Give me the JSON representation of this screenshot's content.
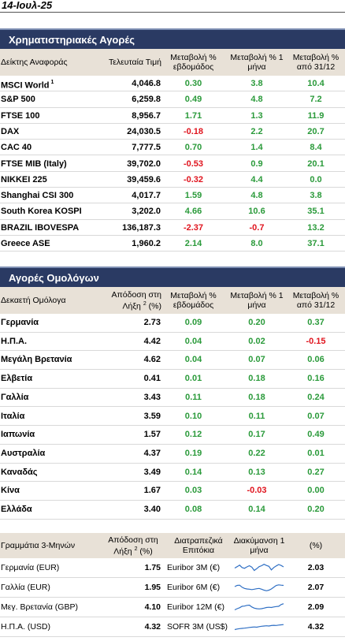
{
  "date": "14-Ιουλ-25",
  "equity": {
    "title": "Χρηματιστηριακές Αγορές",
    "headers": [
      "Δείκτης Αναφοράς",
      "Τελευταία Τιμή",
      "Μεταβολή % εβδομάδος",
      "Μεταβολή % 1 μήνα",
      "Μεταβολή % από 31/12"
    ],
    "rows": [
      {
        "name": "MSCI World",
        "sup": "1",
        "value": "4,046.8",
        "w": "0.30",
        "m": "3.8",
        "y": "10.4"
      },
      {
        "name": "S&P 500",
        "value": "6,259.8",
        "w": "0.49",
        "m": "4.8",
        "y": "7.2"
      },
      {
        "name": "FTSE 100",
        "value": "8,956.7",
        "w": "1.71",
        "m": "1.3",
        "y": "11.9"
      },
      {
        "name": "DAX",
        "value": "24,030.5",
        "w": "-0.18",
        "m": "2.2",
        "y": "20.7"
      },
      {
        "name": "CAC 40",
        "value": "7,777.5",
        "w": "0.70",
        "m": "1.4",
        "y": "8.4"
      },
      {
        "name": "FTSE MIB (Italy)",
        "value": "39,702.0",
        "w": "-0.53",
        "m": "0.9",
        "y": "20.1"
      },
      {
        "name": "NIKKEI 225",
        "value": "39,459.6",
        "w": "-0.32",
        "m": "4.4",
        "y": "0.0"
      },
      {
        "name": "Shanghai CSI 300",
        "value": "4,017.7",
        "w": "1.59",
        "m": "4.8",
        "y": "3.8"
      },
      {
        "name": "South Korea KOSPI",
        "value": "3,202.0",
        "w": "4.66",
        "m": "10.6",
        "y": "35.1"
      },
      {
        "name": "BRAZIL IBOVESPA",
        "value": "136,187.3",
        "w": "-2.37",
        "m": "-0.7",
        "y": "13.2"
      },
      {
        "name": "Greece ASE",
        "value": "1,960.2",
        "w": "2.14",
        "m": "8.0",
        "y": "37.1"
      }
    ]
  },
  "bonds": {
    "title": "Αγορές Ομολόγων",
    "headers": [
      "Δεκαετή Ομόλογα",
      "Απόδοση στη Λήξη",
      "2",
      "(%)",
      "Μεταβολή % εβδομάδος",
      "Μεταβολή % 1 μήνα",
      "Μεταβολή % από 31/12"
    ],
    "rows": [
      {
        "name": "Γερμανία",
        "value": "2.73",
        "w": "0.09",
        "m": "0.20",
        "y": "0.37"
      },
      {
        "name": "Η.Π.Α.",
        "value": "4.42",
        "w": "0.04",
        "m": "0.02",
        "y": "-0.15"
      },
      {
        "name": "Μεγάλη Βρετανία",
        "value": "4.62",
        "w": "0.04",
        "m": "0.07",
        "y": "0.06"
      },
      {
        "name": "Ελβετία",
        "value": "0.41",
        "w": "0.01",
        "m": "0.18",
        "y": "0.16"
      },
      {
        "name": "Γαλλία",
        "value": "3.43",
        "w": "0.11",
        "m": "0.18",
        "y": "0.24"
      },
      {
        "name": "Ιταλία",
        "value": "3.59",
        "w": "0.10",
        "m": "0.11",
        "y": "0.07"
      },
      {
        "name": "Ιαπωνία",
        "value": "1.57",
        "w": "0.12",
        "m": "0.17",
        "y": "0.49"
      },
      {
        "name": "Αυστραλία",
        "value": "4.37",
        "w": "0.19",
        "m": "0.22",
        "y": "0.01"
      },
      {
        "name": "Καναδάς",
        "value": "3.49",
        "w": "0.14",
        "m": "0.13",
        "y": "0.27"
      },
      {
        "name": "Κίνα",
        "value": "1.67",
        "w": "0.03",
        "m": "-0.03",
        "y": "0.00"
      },
      {
        "name": "Ελλάδα",
        "value": "3.40",
        "w": "0.08",
        "m": "0.14",
        "y": "0.20"
      }
    ]
  },
  "money": {
    "headers": [
      "Γραμμάτια 3-Μηνών",
      "Απόδοση στη Λήξη",
      "2",
      "(%)",
      "Διατραπεζικά Επιτόκια",
      "Διακύμανση 1 μήνα",
      "(%)"
    ],
    "rows": [
      {
        "name": "Γερμανία (EUR)",
        "value": "1.75",
        "rate": "Euribor 3M (€)",
        "pct": "2.03",
        "trend": [
          0.5,
          0.62,
          0.75,
          0.55,
          0.48,
          0.6,
          0.7,
          0.58,
          0.3,
          0.45,
          0.62,
          0.7,
          0.82,
          0.72,
          0.65,
          0.35,
          0.55,
          0.68,
          0.8,
          0.72,
          0.6
        ]
      },
      {
        "name": "Γαλλία (EUR)",
        "value": "1.95",
        "rate": "Euribor 6M (€)",
        "pct": "2.07",
        "trend": [
          0.6,
          0.7,
          0.72,
          0.55,
          0.45,
          0.4,
          0.38,
          0.35,
          0.38,
          0.42,
          0.45,
          0.38,
          0.3,
          0.25,
          0.3,
          0.4,
          0.55,
          0.7,
          0.75,
          0.72,
          0.7
        ]
      },
      {
        "name": "Μεγ. Βρετανία (GBP)",
        "value": "4.10",
        "rate": "Euribor 12M (€)",
        "pct": "2.09",
        "trend": [
          0.3,
          0.4,
          0.48,
          0.6,
          0.62,
          0.68,
          0.7,
          0.55,
          0.45,
          0.4,
          0.38,
          0.4,
          0.45,
          0.5,
          0.52,
          0.5,
          0.55,
          0.58,
          0.6,
          0.75,
          0.82
        ]
      },
      {
        "name": "Η.Π.Α. (USD)",
        "value": "4.32",
        "rate": "SOFR 3M (US$)",
        "pct": "4.32",
        "trend": [
          0.3,
          0.35,
          0.38,
          0.4,
          0.42,
          0.45,
          0.48,
          0.5,
          0.52,
          0.5,
          0.55,
          0.58,
          0.6,
          0.62,
          0.6,
          0.64,
          0.66,
          0.65,
          0.68,
          0.7,
          0.72
        ]
      }
    ]
  },
  "colors": {
    "banner": "#2a3a63",
    "header": "#e8e1d7",
    "positive": "#2a9a3a",
    "negative": "#e0141e",
    "sparkline": "#2f6fc4"
  }
}
